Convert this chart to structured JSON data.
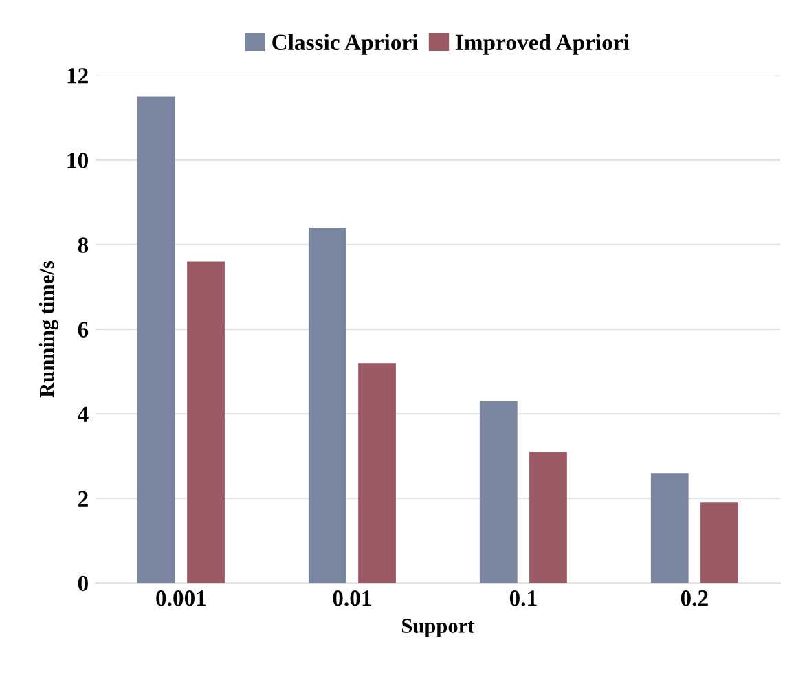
{
  "chart_data": {
    "type": "bar",
    "xlabel": "Support",
    "ylabel": "Running time/s",
    "categories": [
      "0.001",
      "0.01",
      "0.1",
      "0.2"
    ],
    "series": [
      {
        "name": "Classic Apriori",
        "color": "#7a86a0",
        "values": [
          11.5,
          8.4,
          4.3,
          2.6
        ]
      },
      {
        "name": "Improved Apriori",
        "color": "#9c5a64",
        "values": [
          7.6,
          5.2,
          3.1,
          1.9
        ]
      }
    ],
    "ylim": [
      0,
      12
    ],
    "yticks": [
      0,
      2,
      4,
      6,
      8,
      10,
      12
    ],
    "grid": "y",
    "legend": "top"
  }
}
